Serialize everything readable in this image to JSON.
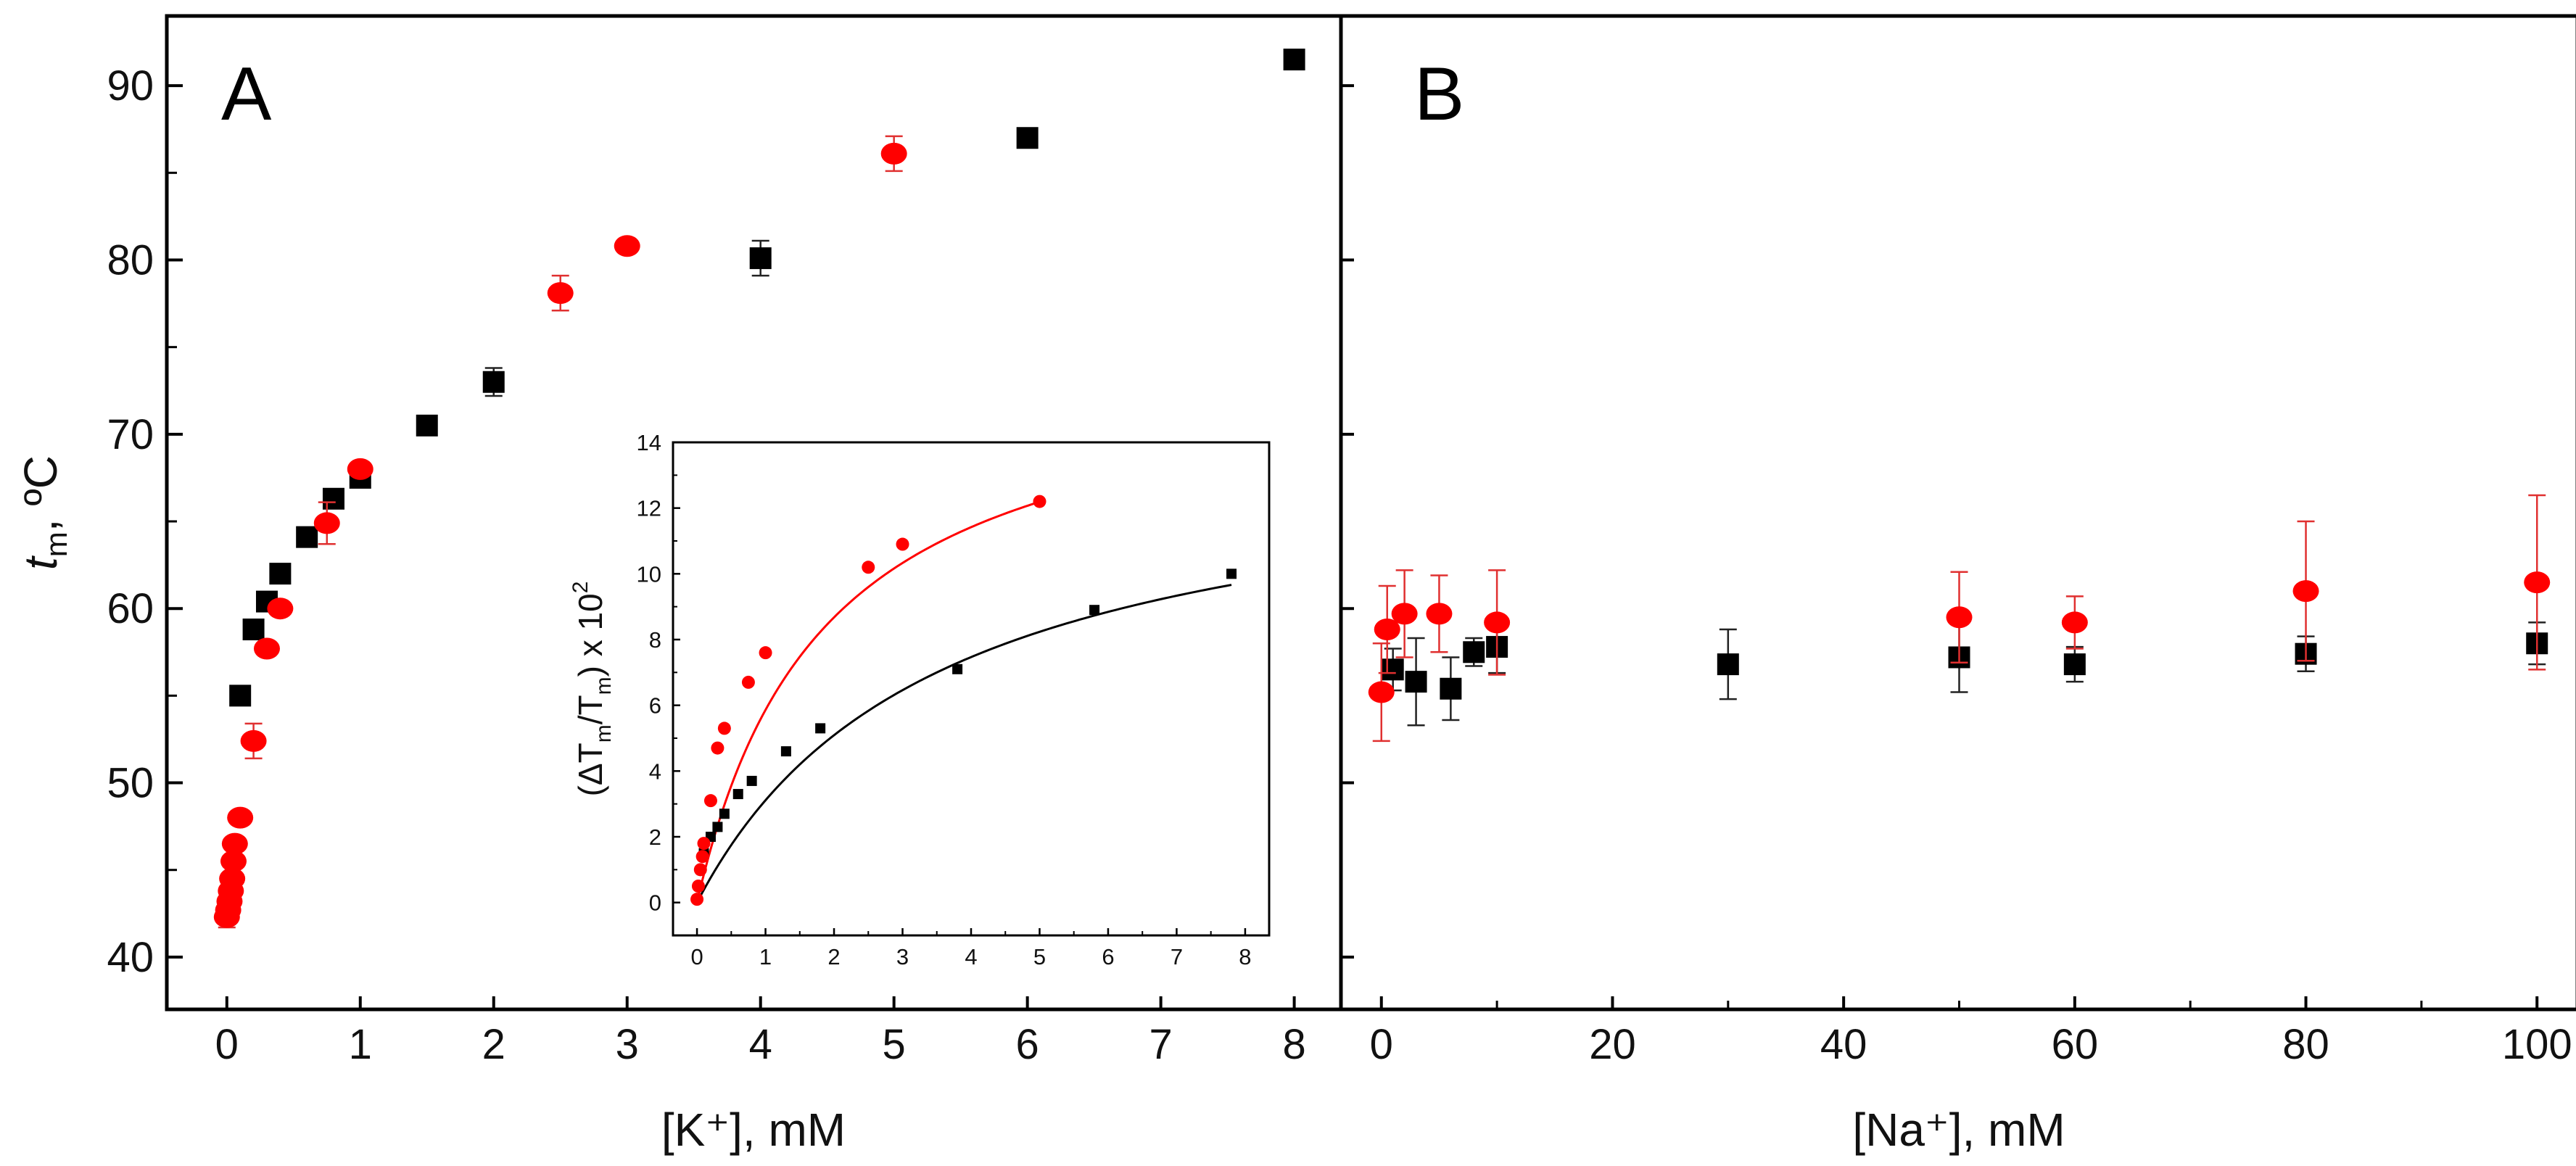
{
  "colors": {
    "red": "#ff0000",
    "black": "#000000",
    "err_red": "#e03030",
    "err_black": "#222222"
  },
  "chart_data": [
    {
      "panel": "A",
      "type": "scatter",
      "label": "A",
      "xlabel": "[K⁺], mM",
      "ylabel": "t_m, ºC",
      "ylabel_main": "t",
      "ylabel_sub": "m",
      "ylabel_rest": ", ºC",
      "xlim": [
        -0.45,
        8.35
      ],
      "ylim": [
        37,
        94
      ],
      "x_ticks": [
        "0",
        "1",
        "2",
        "3",
        "4",
        "5",
        "6",
        "7",
        "8"
      ],
      "y_ticks": [
        "40",
        "50",
        "60",
        "70",
        "80",
        "90"
      ],
      "series": [
        {
          "name": "black squares",
          "marker": "square",
          "color": "#000000",
          "points": [
            [
              0.1,
              55.0,
              0.4
            ],
            [
              0.2,
              58.8,
              0.4
            ],
            [
              0.3,
              60.4,
              0.4
            ],
            [
              0.4,
              62.0,
              0.4
            ],
            [
              0.6,
              64.1,
              0.4
            ],
            [
              0.8,
              66.3,
              0.5
            ],
            [
              1.0,
              67.5,
              0.5
            ],
            [
              1.5,
              70.5,
              0.4
            ],
            [
              2.0,
              73.0,
              0.8
            ],
            [
              4.0,
              80.1,
              1.0
            ],
            [
              6.0,
              87.0,
              0.4
            ],
            [
              8.0,
              91.5,
              0.4
            ]
          ]
        },
        {
          "name": "red circles",
          "marker": "circle",
          "color": "#ff0000",
          "points": [
            [
              0.0,
              42.3,
              0.6
            ],
            [
              0.01,
              42.7,
              0.4
            ],
            [
              0.02,
              43.2,
              0.4
            ],
            [
              0.03,
              43.8,
              0.4
            ],
            [
              0.04,
              44.5,
              0.4
            ],
            [
              0.05,
              45.5,
              0.4
            ],
            [
              0.06,
              46.5,
              0.4
            ],
            [
              0.1,
              48.0,
              0.4
            ],
            [
              0.2,
              52.4,
              1.0
            ],
            [
              0.3,
              57.7,
              0.4
            ],
            [
              0.4,
              60.0,
              0.4
            ],
            [
              0.75,
              64.9,
              1.2
            ],
            [
              1.0,
              68.0,
              0.4
            ],
            [
              2.5,
              78.1,
              1.0
            ],
            [
              3.0,
              80.8,
              0.4
            ],
            [
              5.0,
              86.1,
              1.0
            ]
          ]
        }
      ]
    },
    {
      "panel": "B",
      "type": "scatter",
      "label": "B",
      "xlabel": "[Na⁺], mM",
      "xlim": [
        -3.5,
        103.5
      ],
      "ylim": [
        37,
        94
      ],
      "x_ticks": [
        "0",
        "20",
        "40",
        "60",
        "80",
        "100"
      ],
      "series": [
        {
          "name": "black squares",
          "marker": "square",
          "color": "#000000",
          "points": [
            [
              1,
              56.5,
              1.2
            ],
            [
              3,
              55.8,
              2.5
            ],
            [
              6,
              55.4,
              1.8
            ],
            [
              8,
              57.5,
              0.8
            ],
            [
              10,
              57.8,
              1.5
            ],
            [
              30,
              56.8,
              2.0
            ],
            [
              50,
              57.2,
              2.0
            ],
            [
              60,
              56.8,
              1.0
            ],
            [
              80,
              57.4,
              1.0
            ],
            [
              100,
              58.0,
              1.2
            ]
          ]
        },
        {
          "name": "red circles",
          "marker": "circle",
          "color": "#ff0000",
          "points": [
            [
              0,
              55.2,
              2.8
            ],
            [
              0.5,
              58.8,
              2.5
            ],
            [
              2,
              59.7,
              2.5
            ],
            [
              5,
              59.7,
              2.2
            ],
            [
              10,
              59.2,
              3.0
            ],
            [
              50,
              59.5,
              2.6
            ],
            [
              60,
              59.2,
              1.5
            ],
            [
              80,
              61.0,
              4.0
            ],
            [
              100,
              61.5,
              5.0
            ]
          ]
        }
      ]
    },
    {
      "panel": "inset",
      "type": "scatter",
      "ylabel_parts": [
        "(ΔT",
        "m",
        "/T",
        "m",
        ") x 10",
        "2"
      ],
      "xlim": [
        -0.35,
        8.35
      ],
      "ylim": [
        -1.0,
        14.0
      ],
      "x_ticks": [
        "0",
        "1",
        "2",
        "3",
        "4",
        "5",
        "6",
        "7",
        "8"
      ],
      "y_ticks": [
        "0",
        "2",
        "4",
        "6",
        "8",
        "10",
        "12",
        "14"
      ],
      "series": [
        {
          "name": "black squares",
          "marker": "square",
          "color": "#000000",
          "points": [
            [
              0.1,
              1.5
            ],
            [
              0.2,
              2.0
            ],
            [
              0.3,
              2.3
            ],
            [
              0.4,
              2.7
            ],
            [
              0.6,
              3.3
            ],
            [
              0.8,
              3.7
            ],
            [
              1.3,
              4.6
            ],
            [
              1.8,
              5.3
            ],
            [
              3.8,
              7.1
            ],
            [
              5.8,
              8.9
            ],
            [
              7.8,
              10.0
            ]
          ],
          "fit": {
            "a": 14.0,
            "b": 3.5,
            "xmax": 7.8
          }
        },
        {
          "name": "red circles",
          "marker": "circle",
          "color": "#ff0000",
          "points": [
            [
              0.0,
              0.1
            ],
            [
              0.02,
              0.5
            ],
            [
              0.05,
              1.0
            ],
            [
              0.08,
              1.4
            ],
            [
              0.1,
              1.8
            ],
            [
              0.2,
              3.1
            ],
            [
              0.3,
              4.7
            ],
            [
              0.4,
              5.3
            ],
            [
              0.75,
              6.7
            ],
            [
              1.0,
              7.6
            ],
            [
              2.5,
              10.2
            ],
            [
              3.0,
              10.9
            ],
            [
              5.0,
              12.2
            ]
          ],
          "fit": {
            "a": 16.7,
            "b": 1.85,
            "xmax": 5.0
          }
        }
      ]
    }
  ]
}
